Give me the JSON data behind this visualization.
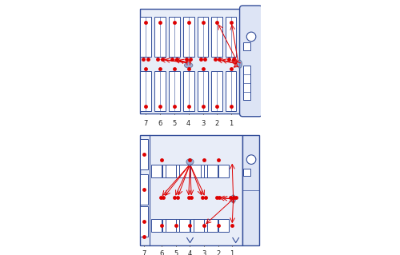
{
  "fig_width": 5.0,
  "fig_height": 3.19,
  "dpi": 100,
  "bg_color": "#ffffff",
  "bus_fc": "#e8edf8",
  "bus_ec": "#334d99",
  "bus_lw": 1.0,
  "seat_fc": "#ffffff",
  "seat_ec": "#334d99",
  "seat_lw": 0.7,
  "sensor_color": "#dd0000",
  "sensor_size": 3.5,
  "aerosol_fc": "#8899cc",
  "aerosol_ec": "#556688",
  "arrow_color": "#dd0000",
  "arrow_lw": 0.7,
  "label_fontsize": 6,
  "label_color": "#222222",
  "cab_fc": "#dde4f5",
  "cab_ec": "#334d99"
}
